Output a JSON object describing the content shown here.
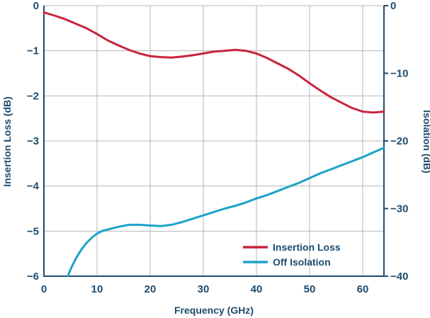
{
  "chart_data": {
    "type": "line",
    "xlabel": "Frequency (GHz)",
    "ylabel_left": "Insertion Loss (dB)",
    "ylabel_right": "Isolation (dB)",
    "xlim": [
      0,
      64
    ],
    "ylim_left": [
      -6,
      0
    ],
    "ylim_right": [
      -40,
      0
    ],
    "x_ticks": [
      0,
      10,
      20,
      30,
      40,
      50,
      60
    ],
    "y_ticks_left": [
      0,
      -1,
      -2,
      -3,
      -4,
      -5,
      -6
    ],
    "y_ticks_right": [
      0,
      -10,
      -20,
      -30,
      -40
    ],
    "grid": true,
    "legend_position": "bottom-right",
    "series": [
      {
        "name": "Insertion Loss",
        "axis": "left",
        "color": "#c8243d",
        "x": [
          0,
          2,
          4,
          6,
          8,
          10,
          12,
          14,
          16,
          18,
          20,
          22,
          24,
          26,
          28,
          30,
          32,
          34,
          36,
          38,
          40,
          42,
          44,
          46,
          48,
          50,
          52,
          54,
          56,
          58,
          60,
          62,
          64
        ],
        "y": [
          -0.15,
          -0.22,
          -0.3,
          -0.4,
          -0.5,
          -0.63,
          -0.77,
          -0.88,
          -0.98,
          -1.06,
          -1.12,
          -1.14,
          -1.15,
          -1.13,
          -1.1,
          -1.06,
          -1.02,
          -1.0,
          -0.98,
          -1.0,
          -1.06,
          -1.16,
          -1.28,
          -1.4,
          -1.55,
          -1.72,
          -1.88,
          -2.03,
          -2.15,
          -2.27,
          -2.35,
          -2.37,
          -2.35
        ]
      },
      {
        "name": "Off Isolation",
        "axis": "right",
        "color": "#1aa3c8",
        "x": [
          4.5,
          5,
          6,
          7,
          8,
          9,
          10,
          11,
          12,
          13,
          14,
          16,
          18,
          20,
          22,
          24,
          26,
          28,
          30,
          32,
          34,
          36,
          38,
          40,
          42,
          44,
          46,
          48,
          50,
          52,
          54,
          56,
          58,
          60,
          62,
          64
        ],
        "y": [
          -40,
          -39.0,
          -37.4,
          -36.1,
          -35.1,
          -34.3,
          -33.7,
          -33.3,
          -33.1,
          -32.9,
          -32.7,
          -32.4,
          -32.4,
          -32.5,
          -32.6,
          -32.4,
          -32.0,
          -31.5,
          -31.0,
          -30.5,
          -30.0,
          -29.6,
          -29.1,
          -28.5,
          -28.0,
          -27.4,
          -26.8,
          -26.2,
          -25.5,
          -24.8,
          -24.2,
          -23.6,
          -23.0,
          -22.4,
          -21.7,
          -21.0
        ]
      }
    ]
  }
}
